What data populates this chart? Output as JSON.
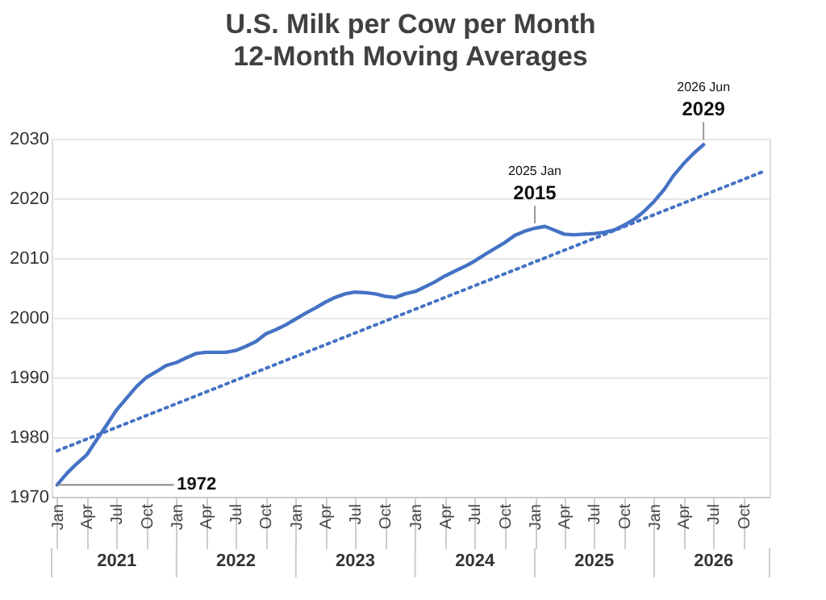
{
  "chart_data": {
    "type": "line",
    "title": "U.S. Milk per Cow per Month",
    "subtitle": "12-Month Moving Averages",
    "x": [
      "2021-01",
      "2021-02",
      "2021-03",
      "2021-04",
      "2021-05",
      "2021-06",
      "2021-07",
      "2021-08",
      "2021-09",
      "2021-10",
      "2021-11",
      "2021-12",
      "2022-01",
      "2022-02",
      "2022-03",
      "2022-04",
      "2022-05",
      "2022-06",
      "2022-07",
      "2022-08",
      "2022-09",
      "2022-10",
      "2022-11",
      "2022-12",
      "2023-01",
      "2023-02",
      "2023-03",
      "2023-04",
      "2023-05",
      "2023-06",
      "2023-07",
      "2023-08",
      "2023-09",
      "2023-10",
      "2023-11",
      "2023-12",
      "2024-01",
      "2024-02",
      "2024-03",
      "2024-04",
      "2024-05",
      "2024-06",
      "2024-07",
      "2024-08",
      "2024-09",
      "2024-10",
      "2024-11",
      "2024-12",
      "2025-01",
      "2025-02",
      "2025-03",
      "2025-04",
      "2025-05",
      "2025-06",
      "2025-07",
      "2025-08",
      "2025-09",
      "2025-10",
      "2025-11",
      "2025-12",
      "2026-01",
      "2026-02",
      "2026-03",
      "2026-04",
      "2026-05",
      "2026-06"
    ],
    "series": [
      {
        "color": "#4472c4",
        "type": "line",
        "line_style": "solid",
        "values": [
          1972,
          1974,
          1975.5,
          1977,
          1979.5,
          1982,
          1984.5,
          1986.5,
          1988.5,
          1990,
          1991,
          1992,
          1992.5,
          1993.3,
          1994,
          1994.2,
          1994.2,
          1994.2,
          1994.5,
          1995.2,
          1996,
          1997.3,
          1998,
          1998.8,
          1999.8,
          2000.8,
          2001.6,
          2002.6,
          2003.4,
          2004,
          2004.3,
          2004.2,
          2004,
          2003.6,
          2003.4,
          2004,
          2004.4,
          2005.2,
          2006,
          2007,
          2007.8,
          2008.6,
          2009.5,
          2010.6,
          2011.6,
          2012.6,
          2013.8,
          2014.5,
          2015,
          2015.3,
          2014.7,
          2014,
          2013.9,
          2014,
          2014.1,
          2014.3,
          2014.7,
          2015.5,
          2016.5,
          2017.8,
          2019.5,
          2021.5,
          2023.8,
          2025.8,
          2027.5,
          2029
        ]
      },
      {
        "color": "#4472c4",
        "type": "line",
        "line_style": "dotted",
        "x": [
          "2021-01",
          "2026-12"
        ],
        "values": [
          1977.7,
          2024.5
        ]
      }
    ],
    "xlim": [
      "2020-12-15",
      "2026-12-20"
    ],
    "xticks": [
      {
        "value": "2021-01",
        "label": "Jan"
      },
      {
        "value": "2021-04",
        "label": "Apr"
      },
      {
        "value": "2021-07",
        "label": "Jul"
      },
      {
        "value": "2021-10",
        "label": "Oct"
      },
      {
        "value": "2022-01",
        "label": "Jan"
      },
      {
        "value": "2022-04",
        "label": "Apr"
      },
      {
        "value": "2022-07",
        "label": "Jul"
      },
      {
        "value": "2022-10",
        "label": "Oct"
      },
      {
        "value": "2023-01",
        "label": "Jan"
      },
      {
        "value": "2023-04",
        "label": "Apr"
      },
      {
        "value": "2023-07",
        "label": "Jul"
      },
      {
        "value": "2023-10",
        "label": "Oct"
      },
      {
        "value": "2024-01",
        "label": "Jan"
      },
      {
        "value": "2024-04",
        "label": "Apr"
      },
      {
        "value": "2024-07",
        "label": "Jul"
      },
      {
        "value": "2024-10",
        "label": "Oct"
      },
      {
        "value": "2025-01",
        "label": "Jan"
      },
      {
        "value": "2025-04",
        "label": "Apr"
      },
      {
        "value": "2025-07",
        "label": "Jul"
      },
      {
        "value": "2025-10",
        "label": "Oct"
      },
      {
        "value": "2026-01",
        "label": "Jan"
      },
      {
        "value": "2026-04",
        "label": "Apr"
      },
      {
        "value": "2026-07",
        "label": "Jul"
      },
      {
        "value": "2026-10",
        "label": "Oct"
      }
    ],
    "ylim": [
      1970,
      2030
    ],
    "yticks": [
      1970,
      1980,
      1990,
      2000,
      2010,
      2020,
      2030
    ],
    "grid": "y",
    "annotations": [
      "2021",
      "2022",
      "2023",
      "2024",
      "2025",
      "2026",
      {
        "text": "1972",
        "x": "2021-01",
        "y": 1972
      },
      {
        "text": "2025 Jan\n2015",
        "x": "2025-01",
        "y": 2015
      },
      {
        "text": "2026 Jun\n2029",
        "x": "2026-06",
        "y": 2029
      }
    ]
  }
}
